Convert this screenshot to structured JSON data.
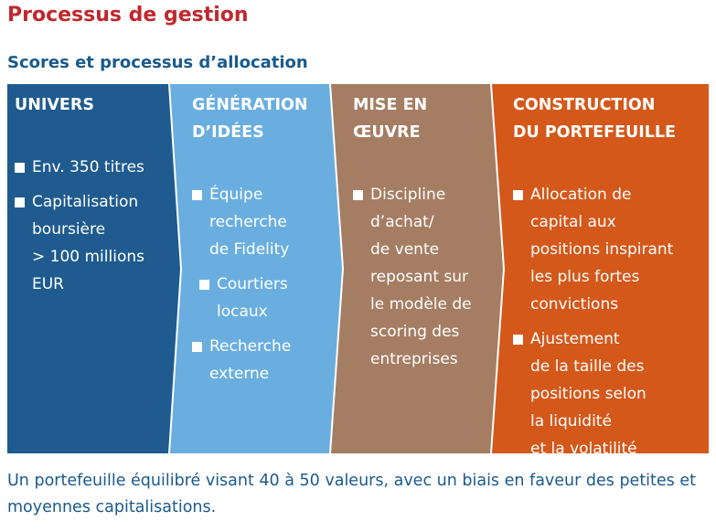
{
  "title": "Processus de gestion",
  "subtitle": "Scores et processus d’allocation",
  "colors": {
    "univers": "#1f5b8f",
    "generation": "#6aaee0",
    "mise": "#a57d63",
    "construction": "#d4581a",
    "title": "#c0282e",
    "subtitle": "#1a5a8c"
  },
  "columns": [
    {
      "heading": "UNIVERS",
      "items": [
        "Env. 350 titres",
        "Capitalisation\nboursière\n> 100 millions\nEUR"
      ]
    },
    {
      "heading": "GÉNÉRATION\nD’IDÉES",
      "items": [
        "Équipe\nrecherche\nde Fidelity",
        "Courtiers\nlocaux",
        "Recherche\nexterne"
      ]
    },
    {
      "heading": "MISE EN\nŒUVRE",
      "items": [
        "Discipline\nd’achat/\nde vente\nreposant sur\nle modèle de\nscoring des\nentreprises"
      ]
    },
    {
      "heading": "CONSTRUCTION\nDU PORTEFEUILLE",
      "items": [
        "Allocation de\ncapital aux\npositions inspirant\nles plus fortes\nconvictions",
        "Ajustement\nde la taille des\npositions selon\nla liquidité\net la volatilité"
      ]
    }
  ],
  "footer": "Un portefeuille équilibré visant 40 à 50 valeurs, avec un biais en faveur des petites et moyennes capitalisations."
}
